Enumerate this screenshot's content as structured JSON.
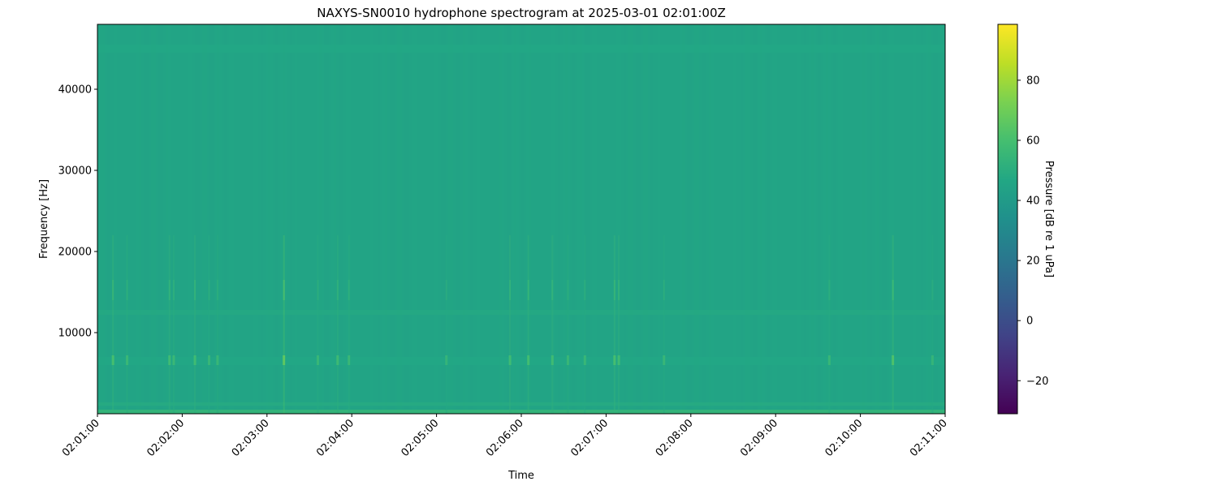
{
  "chart_data": {
    "type": "heatmap",
    "title": "NAXYS-SN0010 hydrophone spectrogram at 2025-03-01 02:01:00Z",
    "xlabel": "Time",
    "ylabel": "Frequency [Hz]",
    "colorbar_label": "Pressure [dB re 1 uPa]",
    "colormap": "viridis",
    "xlim": [
      "02:01:00",
      "02:11:00"
    ],
    "ylim": [
      0,
      48000
    ],
    "clim": [
      -31,
      98.6
    ],
    "xticks": [
      "02:01:00",
      "02:02:00",
      "02:03:00",
      "02:04:00",
      "02:05:00",
      "02:06:00",
      "02:07:00",
      "02:08:00",
      "02:09:00",
      "02:10:00",
      "02:11:00"
    ],
    "yticks": [
      10000,
      20000,
      30000,
      40000
    ],
    "colorbar_ticks": [
      -20,
      0,
      20,
      40,
      60,
      80
    ],
    "background_level_db": 45,
    "tonal_bands": [
      {
        "freq_hz": [
          0,
          500
        ],
        "level_db": 55
      },
      {
        "freq_hz": [
          1000,
          1400
        ],
        "level_db": 49
      },
      {
        "freq_hz": [
          6000,
          7000
        ],
        "level_db": 47
      },
      {
        "freq_hz": [
          12200,
          12800
        ],
        "level_db": 48
      },
      {
        "freq_hz": [
          44500,
          45500
        ],
        "level_db": 47
      }
    ],
    "transients": [
      {
        "time": "02:01:11",
        "level_db": 60
      },
      {
        "time": "02:01:21",
        "level_db": 56
      },
      {
        "time": "02:01:51",
        "level_db": 58
      },
      {
        "time": "02:01:54",
        "level_db": 56
      },
      {
        "time": "02:02:09",
        "level_db": 58
      },
      {
        "time": "02:02:19",
        "level_db": 55
      },
      {
        "time": "02:02:25",
        "level_db": 55
      },
      {
        "time": "02:03:12",
        "level_db": 66
      },
      {
        "time": "02:03:36",
        "level_db": 55
      },
      {
        "time": "02:03:50",
        "level_db": 57
      },
      {
        "time": "02:03:58",
        "level_db": 56
      },
      {
        "time": "02:05:07",
        "level_db": 54
      },
      {
        "time": "02:05:52",
        "level_db": 58
      },
      {
        "time": "02:06:05",
        "level_db": 59
      },
      {
        "time": "02:06:22",
        "level_db": 58
      },
      {
        "time": "02:06:33",
        "level_db": 55
      },
      {
        "time": "02:06:45",
        "level_db": 55
      },
      {
        "time": "02:07:06",
        "level_db": 60
      },
      {
        "time": "02:07:09",
        "level_db": 58
      },
      {
        "time": "02:07:41",
        "level_db": 55
      },
      {
        "time": "02:09:38",
        "level_db": 55
      },
      {
        "time": "02:10:23",
        "level_db": 62
      },
      {
        "time": "02:10:51",
        "level_db": 54
      }
    ]
  }
}
